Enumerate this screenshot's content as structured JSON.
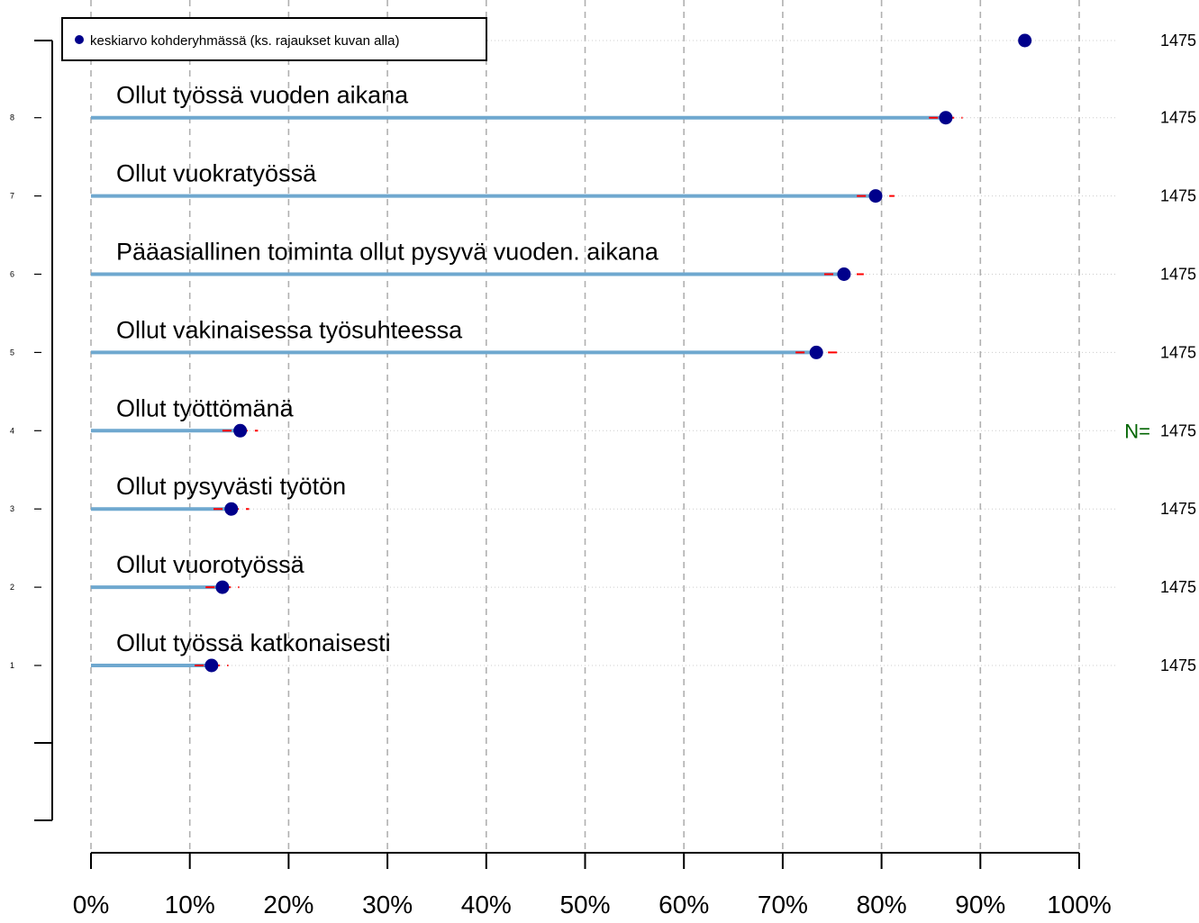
{
  "chart_data": {
    "type": "dot",
    "xlim": [
      0,
      100
    ],
    "x_ticks": [
      "0%",
      "10%",
      "20%",
      "30%",
      "40%",
      "50%",
      "60%",
      "70%",
      "80%",
      "90%",
      "100%"
    ],
    "y_ticks": [
      "1",
      "2",
      "3",
      "4",
      "5",
      "6",
      "7",
      "8"
    ],
    "n_label": "N=",
    "grid": true,
    "legend": {
      "position": "top-left",
      "label": "keskiarvo kohderyhmässä (ks. rajaukset kuvan alla)",
      "value": 94.5,
      "n": "1475"
    },
    "series": [
      {
        "label": "Ollut työssä vuoden aikana",
        "value": 86.5,
        "ci": [
          84.8,
          88.2
        ],
        "n": "1475"
      },
      {
        "label": "Ollut vuokratyössä",
        "value": 79.4,
        "ci": [
          77.5,
          81.3
        ],
        "n": "1475"
      },
      {
        "label": "Pääasiallinen toiminta ollut pysyvä vuoden. aikana",
        "value": 76.2,
        "ci": [
          74.2,
          78.2
        ],
        "n": "1475"
      },
      {
        "label": "Ollut vakinaisessa työsuhteessa",
        "value": 73.4,
        "ci": [
          71.3,
          75.5
        ],
        "n": "1475"
      },
      {
        "label": "Ollut työttömänä",
        "value": 15.1,
        "ci": [
          13.3,
          16.9
        ],
        "n": "1475"
      },
      {
        "label": "Ollut pysyvästi työtön",
        "value": 14.2,
        "ci": [
          12.4,
          16.0
        ],
        "n": "1475"
      },
      {
        "label": "Ollut vuorotyössä",
        "value": 13.3,
        "ci": [
          11.6,
          15.0
        ],
        "n": "1475"
      },
      {
        "label": "Ollut työssä katkonaisesti",
        "value": 12.2,
        "ci": [
          10.5,
          13.9
        ],
        "n": "1475"
      }
    ],
    "colors": {
      "bar": "#6fa8cf",
      "point": "#00008b",
      "ci": "#ff0000",
      "grid": "#b0b0b0",
      "dotted": "#cccccc",
      "n_label": "#006400"
    }
  }
}
